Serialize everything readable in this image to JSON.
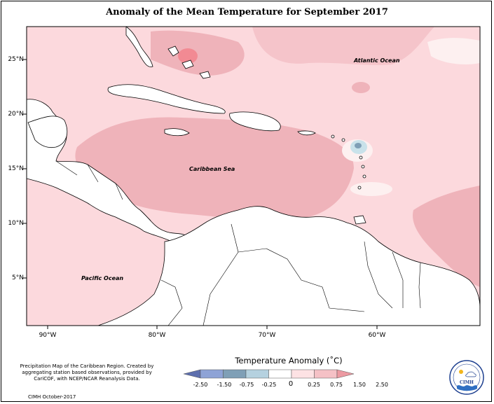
{
  "title": "Anomaly of the Mean Temperature for September 2017",
  "map": {
    "lat_labels": [
      "25°N",
      "20°N",
      "15°N",
      "10°N",
      "5°N"
    ],
    "lon_labels": [
      "90°W",
      "80°W",
      "70°W",
      "60°W"
    ],
    "sea_labels": {
      "atlantic": "Atlantic Ocean",
      "caribbean": "Caribbean Sea",
      "pacific": "Pacific Ocean"
    },
    "colors": {
      "range_0_25_0_75": "#fcd9dd",
      "range_0_75_1_50": "#efb3ba",
      "range_1_50_2_50": "#f28a93",
      "range_0_0_25": "#fdf0f0",
      "range_neg_0_25_0": "#c9e2ea",
      "range_neg_0_75_neg_0_25": "#7f9fb6",
      "land": "#ffffff",
      "coast": "#000000"
    }
  },
  "legend": {
    "title": "Temperature Anomaly (˚C)",
    "ticks": [
      "-2.50",
      "-1.50",
      "-0.75",
      "-0.25",
      "0",
      "0.25",
      "0.75",
      "1.50",
      "2.50"
    ],
    "colors": [
      "#5d6fae",
      "#8ea3d6",
      "#7f9fb6",
      "#b5d1df",
      "#ffffff",
      "#fde2e4",
      "#f5c1c6",
      "#ec9aa2"
    ]
  },
  "notes": {
    "description": "Precipitation Map of the Caribbean Region. Created by aggregating station based observations, provided by CariCOF, with NCEP/NCAR Reanalysis Data.",
    "credit": "CIMH October-2017",
    "logo_text": "CIMH"
  }
}
